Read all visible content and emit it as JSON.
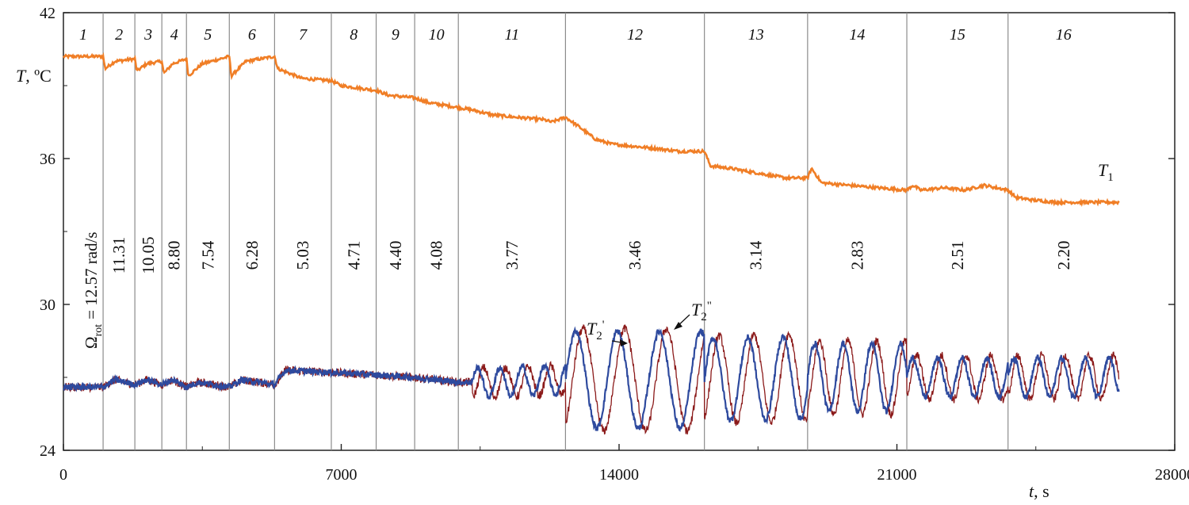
{
  "chart_data": {
    "type": "line",
    "title": "",
    "xlabel": "t, s",
    "ylabel": "T, ºC",
    "xlim": [
      0,
      28000
    ],
    "ylim": [
      24,
      42
    ],
    "x_ticks": [
      0,
      7000,
      14000,
      21000,
      28000
    ],
    "y_ticks": [
      24,
      30,
      36,
      42
    ],
    "segments": [
      {
        "index": "1",
        "start": 0,
        "end": 1000,
        "omega": "Ω_rot = 12.57 rad/s"
      },
      {
        "index": "2",
        "start": 1000,
        "end": 1800,
        "omega": "11.31"
      },
      {
        "index": "3",
        "start": 1800,
        "end": 2480,
        "omega": "10.05"
      },
      {
        "index": "4",
        "start": 2480,
        "end": 3100,
        "omega": "8.80"
      },
      {
        "index": "5",
        "start": 3100,
        "end": 4180,
        "omega": "7.54"
      },
      {
        "index": "6",
        "start": 4180,
        "end": 5320,
        "omega": "6.28"
      },
      {
        "index": "7",
        "start": 5320,
        "end": 6750,
        "omega": "5.03"
      },
      {
        "index": "8",
        "start": 6750,
        "end": 7880,
        "omega": "4.71"
      },
      {
        "index": "9",
        "start": 7880,
        "end": 8850,
        "omega": "4.40"
      },
      {
        "index": "10",
        "start": 8850,
        "end": 9950,
        "omega": "4.08"
      },
      {
        "index": "11",
        "start": 9950,
        "end": 12650,
        "omega": "3.77"
      },
      {
        "index": "12",
        "start": 12650,
        "end": 16150,
        "omega": "3.46"
      },
      {
        "index": "13",
        "start": 16150,
        "end": 18750,
        "omega": "3.14"
      },
      {
        "index": "14",
        "start": 18750,
        "end": 21250,
        "omega": "2.83"
      },
      {
        "index": "15",
        "start": 21250,
        "end": 23800,
        "omega": "2.51"
      },
      {
        "index": "16",
        "start": 23800,
        "end": 26600,
        "omega": "2.20"
      }
    ],
    "series": [
      {
        "name": "T_1",
        "color": "#F07E26",
        "x": [
          0,
          1000,
          1050,
          1300,
          1800,
          1850,
          2100,
          2480,
          2530,
          2750,
          3100,
          3150,
          3500,
          4180,
          4230,
          4600,
          5320,
          5400,
          5700,
          6000,
          6750,
          7000,
          7880,
          8200,
          8850,
          9200,
          9950,
          10300,
          10800,
          11400,
          12100,
          12300,
          12650,
          13000,
          13400,
          13800,
          14400,
          15000,
          15500,
          16150,
          16300,
          16800,
          17500,
          18200,
          18750,
          18850,
          19100,
          19800,
          20500,
          21250,
          21400,
          21600,
          22200,
          22700,
          23200,
          23800,
          24000,
          24400,
          25000,
          25800,
          26600
        ],
        "y": [
          40.2,
          40.2,
          39.7,
          40.0,
          40.1,
          39.6,
          39.9,
          40.0,
          39.5,
          39.9,
          40.1,
          39.4,
          39.9,
          40.2,
          39.4,
          40.0,
          40.2,
          39.7,
          39.5,
          39.3,
          39.2,
          39.0,
          38.8,
          38.6,
          38.5,
          38.3,
          38.1,
          38.0,
          37.8,
          37.7,
          37.6,
          37.5,
          37.7,
          37.3,
          36.8,
          36.6,
          36.5,
          36.4,
          36.3,
          36.3,
          35.7,
          35.6,
          35.4,
          35.2,
          35.2,
          35.6,
          35.0,
          34.9,
          34.8,
          34.7,
          34.9,
          34.7,
          34.8,
          34.7,
          34.9,
          34.7,
          34.4,
          34.3,
          34.2,
          34.2,
          34.2
        ]
      },
      {
        "name": "T_2'",
        "color": "#2E4A9E",
        "baseline": [
          [
            0,
            26.6
          ],
          [
            1000,
            26.6
          ],
          [
            1300,
            26.9
          ],
          [
            1800,
            26.7
          ],
          [
            2100,
            26.9
          ],
          [
            2480,
            26.7
          ],
          [
            2750,
            26.9
          ],
          [
            3100,
            26.6
          ],
          [
            3400,
            26.8
          ],
          [
            4180,
            26.6
          ],
          [
            4500,
            26.9
          ],
          [
            5320,
            26.7
          ],
          [
            5600,
            27.3
          ],
          [
            6750,
            27.2
          ],
          [
            7880,
            27.1
          ],
          [
            8850,
            27.0
          ],
          [
            9950,
            26.8
          ],
          [
            11000,
            26.8
          ],
          [
            12650,
            26.9
          ],
          [
            16150,
            26.9
          ],
          [
            18750,
            27.0
          ],
          [
            21250,
            27.0
          ],
          [
            23800,
            27.0
          ],
          [
            26600,
            27.0
          ]
        ],
        "oscillation": [
          {
            "start": 10300,
            "end": 12650,
            "amplitude": 0.6,
            "period": 560
          },
          {
            "start": 12650,
            "end": 16150,
            "amplitude": 2.0,
            "period": 1050
          },
          {
            "start": 16150,
            "end": 18750,
            "amplitude": 1.7,
            "period": 880
          },
          {
            "start": 18750,
            "end": 21250,
            "amplitude": 1.4,
            "period": 720
          },
          {
            "start": 21250,
            "end": 23800,
            "amplitude": 0.8,
            "period": 620
          },
          {
            "start": 23800,
            "end": 26600,
            "amplitude": 0.8,
            "period": 600
          }
        ]
      },
      {
        "name": "T_2\"",
        "color": "#8B1A1A",
        "baseline": [
          [
            0,
            26.6
          ],
          [
            1000,
            26.6
          ],
          [
            1300,
            26.9
          ],
          [
            1800,
            26.7
          ],
          [
            2100,
            26.9
          ],
          [
            2480,
            26.7
          ],
          [
            2750,
            26.9
          ],
          [
            3100,
            26.6
          ],
          [
            3400,
            26.8
          ],
          [
            4180,
            26.6
          ],
          [
            4500,
            26.9
          ],
          [
            5320,
            26.7
          ],
          [
            5600,
            27.3
          ],
          [
            6750,
            27.2
          ],
          [
            7880,
            27.1
          ],
          [
            8850,
            27.0
          ],
          [
            9950,
            26.8
          ],
          [
            11000,
            26.8
          ],
          [
            12650,
            26.9
          ],
          [
            16150,
            26.9
          ],
          [
            18750,
            27.0
          ],
          [
            21250,
            27.0
          ],
          [
            23800,
            27.0
          ],
          [
            26600,
            27.0
          ]
        ],
        "oscillation": [
          {
            "start": 10300,
            "end": 12650,
            "amplitude": 0.6,
            "period": 560,
            "lag": 150
          },
          {
            "start": 12650,
            "end": 16150,
            "amplitude": 2.1,
            "period": 1050,
            "lag": 180
          },
          {
            "start": 16150,
            "end": 18750,
            "amplitude": 1.8,
            "period": 880,
            "lag": 150
          },
          {
            "start": 18750,
            "end": 21250,
            "amplitude": 1.5,
            "period": 720,
            "lag": 120
          },
          {
            "start": 21250,
            "end": 23800,
            "amplitude": 0.9,
            "period": 620,
            "lag": 100
          },
          {
            "start": 23800,
            "end": 26600,
            "amplitude": 0.9,
            "period": 600,
            "lag": 100
          }
        ]
      }
    ],
    "annotations": {
      "t1_label": "T",
      "t1_sub": "1",
      "t2a_label": "T",
      "t2a_sub": "2",
      "t2a_mark": "'",
      "t2b_label": "T",
      "t2b_sub": "2",
      "t2b_mark": "\"",
      "omega_symbol": "Ω",
      "omega_sub": "rot",
      "omega_value": "= 12.57 rad/s",
      "ylabel_var": "T",
      "ylabel_unit": ", ºC",
      "xlabel_var": "t",
      "xlabel_unit": ", s"
    }
  }
}
